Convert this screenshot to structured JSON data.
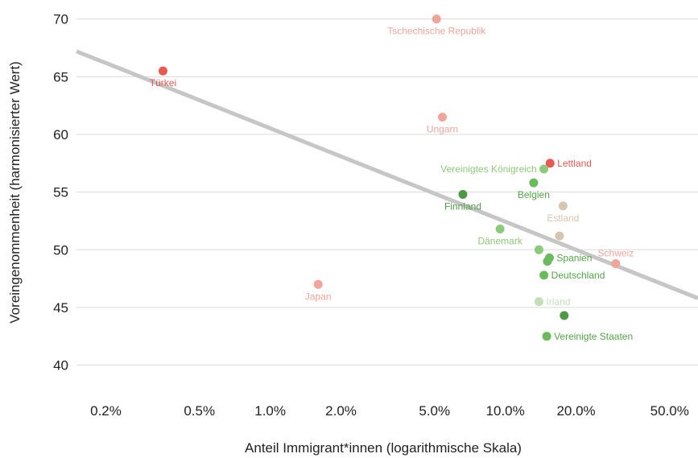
{
  "chart_data": {
    "type": "scatter",
    "title": "",
    "xlabel": "Anteil Immigrant*innen (logarithmische Skala)",
    "ylabel": "Voreingenommenheit (harmonisierter Wert)",
    "x_scale": "log",
    "xlim": [
      0.15,
      66
    ],
    "ylim": [
      38.3,
      71.3
    ],
    "x_ticks": [
      0.2,
      0.5,
      1.0,
      2.0,
      5.0,
      10.0,
      20.0,
      50.0
    ],
    "x_tick_labels": [
      "0.2%",
      "0.5%",
      "1.0%",
      "2.0%",
      "5.0%",
      "10.0%",
      "20.0%",
      "50.0%"
    ],
    "y_ticks": [
      40,
      45,
      50,
      55,
      60,
      65,
      70
    ],
    "y_tick_labels": [
      "40",
      "45",
      "50",
      "55",
      "60",
      "65",
      "70"
    ],
    "grid": "horizontal",
    "legend": "none",
    "trend_line": {
      "x": [
        0.15,
        66
      ],
      "y": [
        67.2,
        45.8
      ],
      "color": "#c6c6c6"
    },
    "points": [
      {
        "label": "Tschechische Republik",
        "x": 5.1,
        "y": 70.0,
        "color": "#f2a49a",
        "label_color": "#f2a49a",
        "label_pos": "below"
      },
      {
        "label": "Türkei",
        "x": 0.35,
        "y": 65.5,
        "color": "#e8594f",
        "label_color": "#e8594f",
        "label_pos": "below"
      },
      {
        "label": "Ungarn",
        "x": 5.4,
        "y": 61.5,
        "color": "#f2a49a",
        "label_color": "#f2a49a",
        "label_pos": "below"
      },
      {
        "label": "Lettland",
        "x": 15.5,
        "y": 57.5,
        "color": "#e8594f",
        "label_color": "#e8594f",
        "label_pos": "right"
      },
      {
        "label": "Vereinigtes Königreich",
        "x": 14.6,
        "y": 57.0,
        "color": "#8cc97a",
        "label_color": "#8cc97a",
        "label_pos": "left"
      },
      {
        "label": "Belgien",
        "x": 13.2,
        "y": 55.8,
        "color": "#6abb5c",
        "label_color": "#54a548",
        "label_pos": "below"
      },
      {
        "label": "Finnland",
        "x": 6.6,
        "y": 54.8,
        "color": "#4e9a44",
        "label_color": "#4e9a44",
        "label_pos": "below"
      },
      {
        "label": "Estland",
        "x": 17.6,
        "y": 53.8,
        "color": "#d6c5b0",
        "label_color": "#d6c5b0",
        "label_pos": "below"
      },
      {
        "label": "",
        "x": 17.0,
        "y": 51.2,
        "color": "#d6c5b0"
      },
      {
        "label": "Dänemark",
        "x": 9.5,
        "y": 51.8,
        "color": "#8cc97a",
        "label_color": "#8cc97a",
        "label_pos": "below"
      },
      {
        "label": "",
        "x": 13.9,
        "y": 50.0,
        "color": "#8cc97a"
      },
      {
        "label": "Schweiz",
        "x": 29.5,
        "y": 48.8,
        "color": "#f2a49a",
        "label_color": "#f2a49a",
        "label_pos": "above"
      },
      {
        "label": "Spanien",
        "x": 15.4,
        "y": 49.3,
        "color": "#6abb5c",
        "label_color": "#54a548",
        "label_pos": "right"
      },
      {
        "label": "",
        "x": 15.1,
        "y": 49.0,
        "color": "#6abb5c"
      },
      {
        "label": "Deutschland",
        "x": 14.6,
        "y": 47.8,
        "color": "#6abb5c",
        "label_color": "#54a548",
        "label_pos": "right"
      },
      {
        "label": "Japan",
        "x": 1.6,
        "y": 47.0,
        "color": "#f2a49a",
        "label_color": "#f2a49a",
        "label_pos": "below"
      },
      {
        "label": "Irland",
        "x": 13.9,
        "y": 45.5,
        "color": "#c3dfb5",
        "label_color": "#c3dfb5",
        "label_pos": "right"
      },
      {
        "label": "",
        "x": 17.8,
        "y": 44.3,
        "color": "#4e9a44"
      },
      {
        "label": "Vereinigte Staaten",
        "x": 15.0,
        "y": 42.5,
        "color": "#6abb5c",
        "label_color": "#54a548",
        "label_pos": "right"
      }
    ]
  }
}
